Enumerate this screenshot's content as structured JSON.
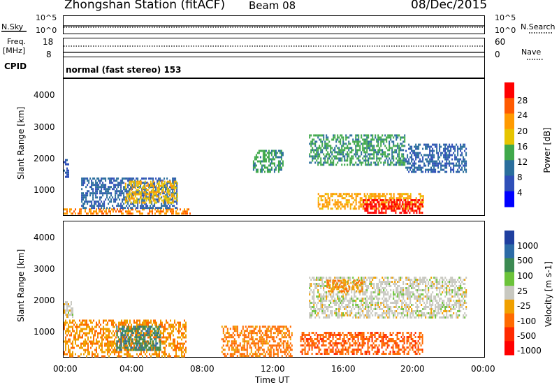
{
  "header": {
    "station_title": "Zhongshan Station (fitACF)",
    "beam": "Beam 08",
    "date": "08/Dec/2015"
  },
  "top_panels": {
    "nsky_label": "N.Sky",
    "nsky_ticks": [
      "10^5",
      "10^0"
    ],
    "nsearch_label": "N.Search",
    "nsearch_ticks": [
      "10^5",
      "10^0"
    ],
    "freq_label": "Freq.",
    "freq_unit": "[MHz]",
    "freq_ticks": [
      "18",
      "8"
    ],
    "nave_label": "Nave",
    "nave_ticks": [
      "60",
      "0"
    ],
    "cpid_label": "CPID",
    "cpid_text": "normal (fast stereo) 153"
  },
  "axes": {
    "y_label": "Slant Range [km]",
    "y_ticks": [
      "4000",
      "3000",
      "2000",
      "1000"
    ],
    "x_label": "Time UT",
    "x_ticks": [
      "00:00",
      "04:00",
      "08:00",
      "12:00",
      "16:00",
      "20:00",
      "00:00"
    ]
  },
  "power_scale": {
    "label": "Power [dB]",
    "ticks": [
      "28",
      "24",
      "20",
      "16",
      "12",
      "8",
      "4"
    ],
    "colors": [
      "#ff0000",
      "#ff5a00",
      "#ff9a00",
      "#e6c400",
      "#3fa84a",
      "#2a6e9c",
      "#2f4fb8",
      "#0000ff"
    ]
  },
  "velocity_scale": {
    "label": "Velocity [m s-1]",
    "ticks": [
      "1000",
      "500",
      "100",
      "25",
      "-25",
      "-100",
      "-500",
      "-1000"
    ],
    "colors": [
      "#1f3f9f",
      "#2c6ba6",
      "#3b8a52",
      "#6cc33a",
      "#c8c8c0",
      "#f0a000",
      "#ff6a00",
      "#ff2a00",
      "#ff0000"
    ]
  },
  "chart_data": [
    {
      "type": "heatmap",
      "title": "",
      "xlabel": "Time UT",
      "ylabel": "Slant Range [km]",
      "xlim": [
        "00:00",
        "24:00"
      ],
      "ylim": [
        180,
        4600
      ],
      "colorbar_label": "Power [dB]",
      "colorbar_range": [
        0,
        30
      ],
      "echo_regions": [
        {
          "t_start": 0.0,
          "t_end": 0.3,
          "range_start": 1400,
          "range_end": 2000,
          "value": 6
        },
        {
          "t_start": 0.0,
          "t_end": 7.2,
          "range_start": 200,
          "range_end": 400,
          "value": 22
        },
        {
          "t_start": 1.0,
          "t_end": 6.5,
          "range_start": 400,
          "range_end": 1400,
          "value": 8
        },
        {
          "t_start": 3.5,
          "t_end": 6.5,
          "range_start": 600,
          "range_end": 1300,
          "value": 18
        },
        {
          "t_start": 10.8,
          "t_end": 12.5,
          "range_start": 1600,
          "range_end": 2300,
          "value": 12
        },
        {
          "t_start": 14.5,
          "t_end": 20.5,
          "range_start": 400,
          "range_end": 900,
          "value": 20
        },
        {
          "t_start": 17.0,
          "t_end": 20.5,
          "range_start": 250,
          "range_end": 700,
          "value": 28
        },
        {
          "t_start": 14.0,
          "t_end": 19.5,
          "range_start": 1800,
          "range_end": 2800,
          "value": 12
        },
        {
          "t_start": 19.5,
          "t_end": 23.0,
          "range_start": 1600,
          "range_end": 2500,
          "value": 8
        }
      ]
    },
    {
      "type": "heatmap",
      "title": "",
      "xlabel": "Time UT",
      "ylabel": "Slant Range [km]",
      "xlim": [
        "00:00",
        "24:00"
      ],
      "ylim": [
        180,
        4600
      ],
      "colorbar_label": "Velocity [m s-1]",
      "colorbar_range": [
        -1000,
        1000
      ],
      "echo_regions": [
        {
          "t_start": 0.0,
          "t_end": 0.5,
          "range_start": 1500,
          "range_end": 2000,
          "value": 0
        },
        {
          "t_start": 0.0,
          "t_end": 7.0,
          "range_start": 200,
          "range_end": 1400,
          "value": -300
        },
        {
          "t_start": 3.0,
          "t_end": 5.5,
          "range_start": 400,
          "range_end": 1200,
          "value": 500
        },
        {
          "t_start": 9.0,
          "t_end": 13.0,
          "range_start": 200,
          "range_end": 1200,
          "value": -400
        },
        {
          "t_start": 13.5,
          "t_end": 20.5,
          "range_start": 300,
          "range_end": 1000,
          "value": -500
        },
        {
          "t_start": 14.0,
          "t_end": 23.0,
          "range_start": 1500,
          "range_end": 2800,
          "value": 0
        },
        {
          "t_start": 15.0,
          "t_end": 17.0,
          "range_start": 2300,
          "range_end": 2700,
          "value": -300
        }
      ]
    }
  ]
}
